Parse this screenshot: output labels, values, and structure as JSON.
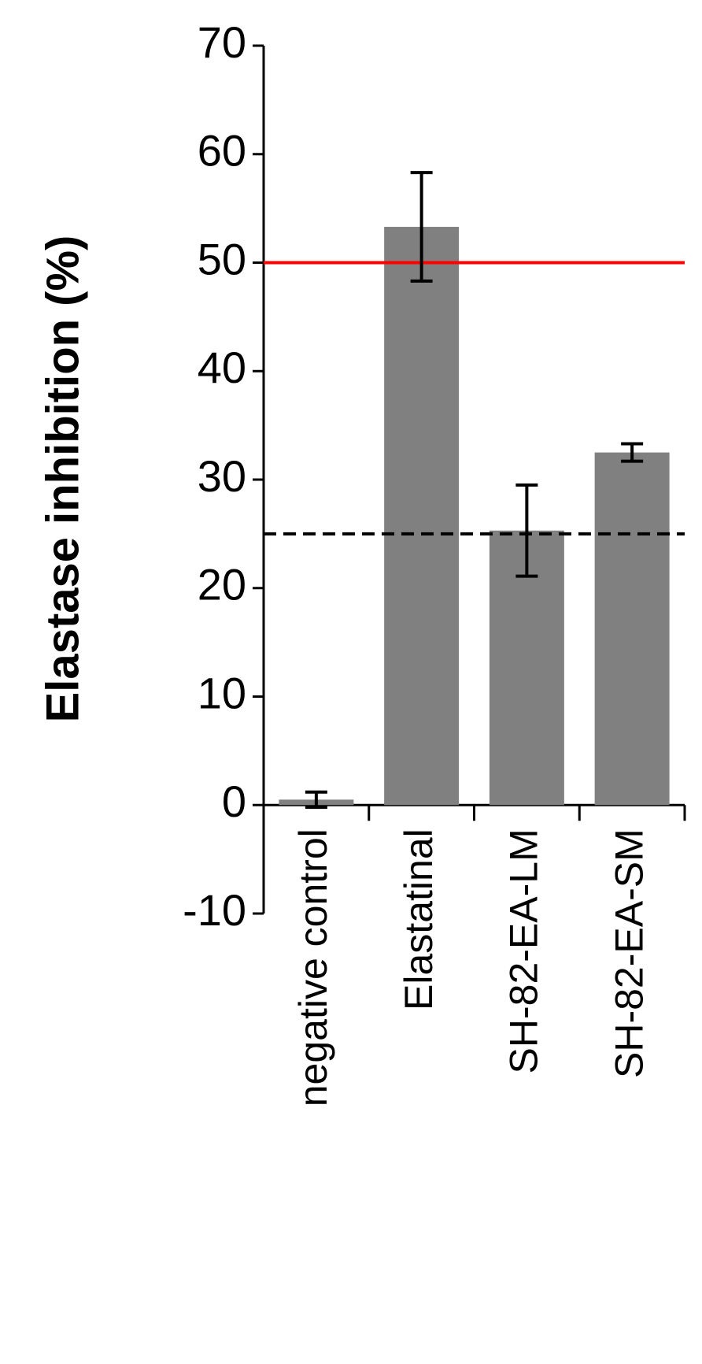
{
  "chart_data": {
    "type": "bar",
    "y_label": "Elastase inhibition (%)",
    "categories": [
      "negative control",
      "Elastatinal",
      "SH-82-EA-LM",
      "SH-82-EA-SM"
    ],
    "values": [
      0.5,
      53.3,
      25.3,
      32.5
    ],
    "errors": [
      0.7,
      5.0,
      4.2,
      0.8
    ],
    "color": "#808080",
    "ylim": [
      -10,
      70
    ],
    "yticks": [
      -10,
      0,
      10,
      20,
      30,
      40,
      50,
      60,
      70
    ],
    "reference_lines": [
      {
        "value": 50,
        "color": "#ff0000",
        "style": "solid"
      },
      {
        "value": 25,
        "color": "#000000",
        "style": "dashed"
      }
    ]
  }
}
